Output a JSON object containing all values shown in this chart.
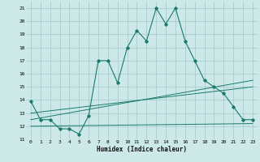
{
  "xlabel": "Humidex (Indice chaleur)",
  "bg_color": "#cce8e8",
  "grid_color": "#aacccc",
  "line_color": "#1a7a6e",
  "xlim": [
    -0.5,
    23.5
  ],
  "ylim": [
    11,
    21.5
  ],
  "xticks": [
    0,
    1,
    2,
    3,
    4,
    5,
    6,
    7,
    8,
    9,
    10,
    11,
    12,
    13,
    14,
    15,
    16,
    17,
    18,
    19,
    20,
    21,
    22,
    23
  ],
  "yticks": [
    11,
    12,
    13,
    14,
    15,
    16,
    17,
    18,
    19,
    20,
    21
  ],
  "line1_x": [
    0,
    1,
    2,
    3,
    4,
    5,
    6,
    7,
    8,
    9,
    10,
    11,
    12,
    13,
    14,
    15,
    16,
    17,
    18,
    19,
    20,
    21,
    22,
    23
  ],
  "line1_y": [
    13.9,
    12.5,
    12.5,
    11.8,
    11.8,
    11.4,
    12.8,
    17.0,
    17.0,
    15.3,
    18.0,
    19.3,
    18.5,
    21.0,
    19.8,
    21.0,
    18.5,
    17.0,
    15.5,
    15.0,
    14.5,
    13.5,
    12.5,
    12.5
  ],
  "line2_x": [
    0,
    23
  ],
  "line2_y": [
    12.5,
    15.5
  ],
  "line3_x": [
    0,
    23
  ],
  "line3_y": [
    13.0,
    15.0
  ],
  "line4_x": [
    0,
    23
  ],
  "line4_y": [
    12.0,
    12.2
  ]
}
